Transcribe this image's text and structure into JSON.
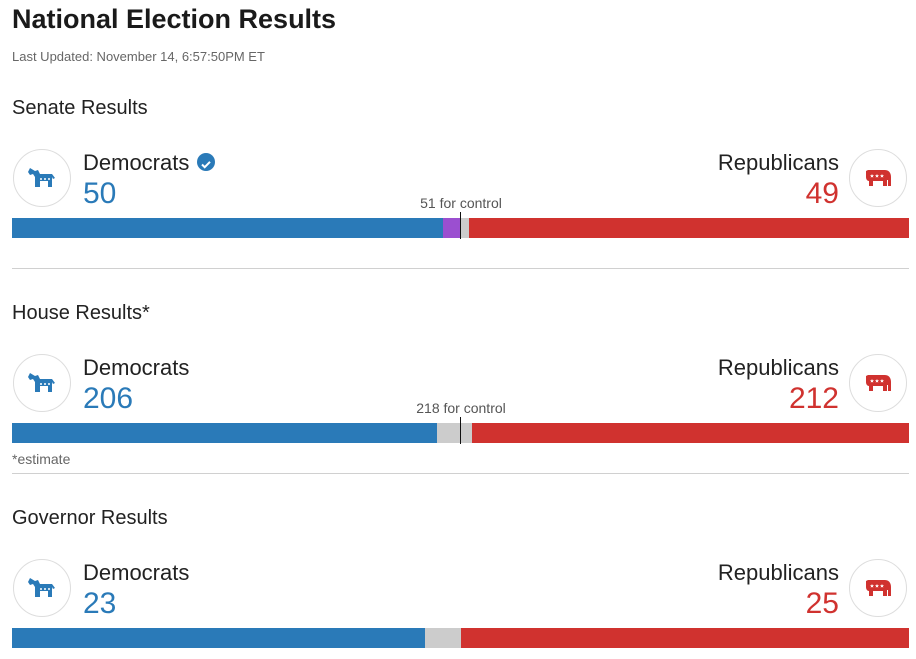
{
  "header": {
    "title": "National Election Results",
    "last_updated": "Last Updated: November 14, 6:57:50PM ET"
  },
  "colors": {
    "democrat": "#2a7ab8",
    "republican": "#d0322f",
    "independent": "#9b4fd0",
    "undecided": "#cccccc"
  },
  "senate": {
    "title": "Senate Results",
    "dem_label": "Democrats",
    "dem_count": "50",
    "rep_label": "Republicans",
    "rep_count": "49",
    "control_label": "51 for control",
    "dem_icon": "donkey-icon",
    "rep_icon": "elephant-icon",
    "check_icon": "verified-check-icon"
  },
  "house": {
    "title": "House Results*",
    "dem_label": "Democrats",
    "dem_count": "206",
    "rep_label": "Republicans",
    "rep_count": "212",
    "control_label": "218 for control",
    "footnote": "*estimate"
  },
  "governor": {
    "title": "Governor Results",
    "dem_label": "Democrats",
    "dem_count": "23",
    "rep_label": "Republicans",
    "rep_count": "25"
  }
}
